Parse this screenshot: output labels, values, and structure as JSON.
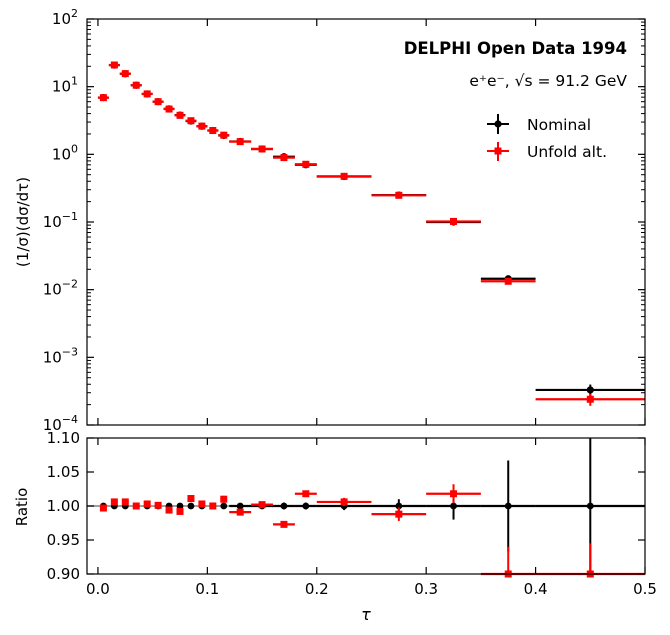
{
  "chart_data": [
    {
      "panel": "top",
      "type": "scatter",
      "title": "DELPHI Open Data 1994",
      "subtitle": "e⁺e⁻, √s = 91.2 GeV",
      "xlabel": "τ",
      "ylabel": "(1/σ)(dσ/dτ)",
      "yscale": "log",
      "xlim": [
        -0.01,
        0.5
      ],
      "ylim": [
        0.0001,
        100
      ],
      "x_ticks": [
        0.0,
        0.1,
        0.2,
        0.3,
        0.4,
        0.5
      ],
      "y_ticks": [
        {
          "value": 0.0001,
          "base": "10",
          "exp": "−4"
        },
        {
          "value": 0.001,
          "base": "10",
          "exp": "−3"
        },
        {
          "value": 0.01,
          "base": "10",
          "exp": "−2"
        },
        {
          "value": 0.1,
          "base": "10",
          "exp": "−1"
        },
        {
          "value": 1,
          "base": "10",
          "exp": "0"
        },
        {
          "value": 10,
          "base": "10",
          "exp": "1"
        },
        {
          "value": 100,
          "base": "10",
          "exp": "2"
        }
      ],
      "legend_position": "upper-right",
      "series": [
        {
          "name": "Nominal",
          "color": "#000000",
          "points": [
            {
              "xlo": 0.0,
              "xhi": 0.01,
              "y": 6.9
            },
            {
              "xlo": 0.01,
              "xhi": 0.02,
              "y": 20.8
            },
            {
              "xlo": 0.02,
              "xhi": 0.03,
              "y": 15.5
            },
            {
              "xlo": 0.03,
              "xhi": 0.04,
              "y": 10.5
            },
            {
              "xlo": 0.04,
              "xhi": 0.05,
              "y": 7.8
            },
            {
              "xlo": 0.05,
              "xhi": 0.06,
              "y": 6.0
            },
            {
              "xlo": 0.06,
              "xhi": 0.07,
              "y": 4.7
            },
            {
              "xlo": 0.07,
              "xhi": 0.08,
              "y": 3.8
            },
            {
              "xlo": 0.08,
              "xhi": 0.09,
              "y": 3.1
            },
            {
              "xlo": 0.09,
              "xhi": 0.1,
              "y": 2.6
            },
            {
              "xlo": 0.1,
              "xhi": 0.11,
              "y": 2.25
            },
            {
              "xlo": 0.11,
              "xhi": 0.12,
              "y": 1.9
            },
            {
              "xlo": 0.12,
              "xhi": 0.14,
              "y": 1.55
            },
            {
              "xlo": 0.14,
              "xhi": 0.16,
              "y": 1.2
            },
            {
              "xlo": 0.16,
              "xhi": 0.18,
              "y": 0.92
            },
            {
              "xlo": 0.18,
              "xhi": 0.2,
              "y": 0.7
            },
            {
              "xlo": 0.2,
              "xhi": 0.25,
              "y": 0.47
            },
            {
              "xlo": 0.25,
              "xhi": 0.3,
              "y": 0.25
            },
            {
              "xlo": 0.3,
              "xhi": 0.35,
              "y": 0.1
            },
            {
              "xlo": 0.35,
              "xhi": 0.4,
              "y": 0.0145
            },
            {
              "xlo": 0.4,
              "xhi": 0.5,
              "y": 0.00033
            }
          ]
        },
        {
          "name": "Unfold alt.",
          "color": "#ff0000",
          "points": [
            {
              "xlo": 0.0,
              "xhi": 0.01,
              "y": 6.88
            },
            {
              "xlo": 0.01,
              "xhi": 0.02,
              "y": 20.9
            },
            {
              "xlo": 0.02,
              "xhi": 0.03,
              "y": 15.6
            },
            {
              "xlo": 0.03,
              "xhi": 0.04,
              "y": 10.5
            },
            {
              "xlo": 0.04,
              "xhi": 0.05,
              "y": 7.82
            },
            {
              "xlo": 0.05,
              "xhi": 0.06,
              "y": 6.0
            },
            {
              "xlo": 0.06,
              "xhi": 0.07,
              "y": 4.67
            },
            {
              "xlo": 0.07,
              "xhi": 0.08,
              "y": 3.77
            },
            {
              "xlo": 0.08,
              "xhi": 0.09,
              "y": 3.14
            },
            {
              "xlo": 0.09,
              "xhi": 0.1,
              "y": 2.61
            },
            {
              "xlo": 0.1,
              "xhi": 0.11,
              "y": 2.25
            },
            {
              "xlo": 0.11,
              "xhi": 0.12,
              "y": 1.92
            },
            {
              "xlo": 0.12,
              "xhi": 0.14,
              "y": 1.54
            },
            {
              "xlo": 0.14,
              "xhi": 0.16,
              "y": 1.2
            },
            {
              "xlo": 0.16,
              "xhi": 0.18,
              "y": 0.895
            },
            {
              "xlo": 0.18,
              "xhi": 0.2,
              "y": 0.713
            },
            {
              "xlo": 0.2,
              "xhi": 0.25,
              "y": 0.473
            },
            {
              "xlo": 0.25,
              "xhi": 0.3,
              "y": 0.248
            },
            {
              "xlo": 0.3,
              "xhi": 0.35,
              "y": 0.102
            },
            {
              "xlo": 0.35,
              "xhi": 0.4,
              "y": 0.0133
            },
            {
              "xlo": 0.4,
              "xhi": 0.5,
              "y": 0.00024
            }
          ]
        }
      ]
    },
    {
      "panel": "bottom",
      "type": "scatter",
      "xlabel": "τ",
      "ylabel": "Ratio",
      "xlim": [
        -0.01,
        0.5
      ],
      "ylim": [
        0.9,
        1.1
      ],
      "x_ticks": [
        0.0,
        0.1,
        0.2,
        0.3,
        0.4,
        0.5
      ],
      "x_tick_labels": [
        "0.0",
        "0.1",
        "0.2",
        "0.3",
        "0.4",
        "0.5"
      ],
      "y_ticks": [
        0.9,
        0.95,
        1.0,
        1.05,
        1.1
      ],
      "y_tick_labels": [
        "0.90",
        "0.95",
        "1.00",
        "1.05",
        "1.10"
      ],
      "reference_line": 1.0,
      "series": [
        {
          "name": "Nominal",
          "color": "#000000",
          "points": [
            {
              "xlo": 0.0,
              "xhi": 0.01,
              "y": 1.0,
              "err": 0.003
            },
            {
              "xlo": 0.01,
              "xhi": 0.02,
              "y": 1.0,
              "err": 0.002
            },
            {
              "xlo": 0.02,
              "xhi": 0.03,
              "y": 1.0,
              "err": 0.002
            },
            {
              "xlo": 0.03,
              "xhi": 0.04,
              "y": 1.0,
              "err": 0.002
            },
            {
              "xlo": 0.04,
              "xhi": 0.05,
              "y": 1.0,
              "err": 0.002
            },
            {
              "xlo": 0.05,
              "xhi": 0.06,
              "y": 1.0,
              "err": 0.002
            },
            {
              "xlo": 0.06,
              "xhi": 0.07,
              "y": 1.0,
              "err": 0.002
            },
            {
              "xlo": 0.07,
              "xhi": 0.08,
              "y": 1.0,
              "err": 0.002
            },
            {
              "xlo": 0.08,
              "xhi": 0.09,
              "y": 1.0,
              "err": 0.002
            },
            {
              "xlo": 0.09,
              "xhi": 0.1,
              "y": 1.0,
              "err": 0.002
            },
            {
              "xlo": 0.1,
              "xhi": 0.11,
              "y": 1.0,
              "err": 0.002
            },
            {
              "xlo": 0.11,
              "xhi": 0.12,
              "y": 1.0,
              "err": 0.003
            },
            {
              "xlo": 0.12,
              "xhi": 0.14,
              "y": 1.0,
              "err": 0.003
            },
            {
              "xlo": 0.14,
              "xhi": 0.16,
              "y": 1.0,
              "err": 0.003
            },
            {
              "xlo": 0.16,
              "xhi": 0.18,
              "y": 1.0,
              "err": 0.005
            },
            {
              "xlo": 0.18,
              "xhi": 0.2,
              "y": 1.0,
              "err": 0.005
            },
            {
              "xlo": 0.2,
              "xhi": 0.25,
              "y": 1.0,
              "err": 0.006
            },
            {
              "xlo": 0.25,
              "xhi": 0.3,
              "y": 1.0,
              "err": 0.01
            },
            {
              "xlo": 0.3,
              "xhi": 0.35,
              "y": 1.0,
              "err": 0.02
            },
            {
              "xlo": 0.35,
              "xhi": 0.4,
              "y": 1.0,
              "err": 0.067
            },
            {
              "xlo": 0.4,
              "xhi": 0.5,
              "y": 1.0,
              "err": 0.15
            }
          ]
        },
        {
          "name": "Unfold alt.",
          "color": "#ff0000",
          "points": [
            {
              "xlo": 0.0,
              "xhi": 0.01,
              "y": 0.997,
              "err": 0.003
            },
            {
              "xlo": 0.01,
              "xhi": 0.02,
              "y": 1.006,
              "err": 0.003
            },
            {
              "xlo": 0.02,
              "xhi": 0.03,
              "y": 1.006,
              "err": 0.003
            },
            {
              "xlo": 0.03,
              "xhi": 0.04,
              "y": 1.0,
              "err": 0.003
            },
            {
              "xlo": 0.04,
              "xhi": 0.05,
              "y": 1.003,
              "err": 0.003
            },
            {
              "xlo": 0.05,
              "xhi": 0.06,
              "y": 1.001,
              "err": 0.003
            },
            {
              "xlo": 0.06,
              "xhi": 0.07,
              "y": 0.994,
              "err": 0.003
            },
            {
              "xlo": 0.07,
              "xhi": 0.08,
              "y": 0.992,
              "err": 0.004
            },
            {
              "xlo": 0.08,
              "xhi": 0.09,
              "y": 1.011,
              "err": 0.004
            },
            {
              "xlo": 0.09,
              "xhi": 0.1,
              "y": 1.003,
              "err": 0.004
            },
            {
              "xlo": 0.1,
              "xhi": 0.11,
              "y": 1.0,
              "err": 0.003
            },
            {
              "xlo": 0.11,
              "xhi": 0.12,
              "y": 1.01,
              "err": 0.005
            },
            {
              "xlo": 0.12,
              "xhi": 0.14,
              "y": 0.991,
              "err": 0.004
            },
            {
              "xlo": 0.14,
              "xhi": 0.16,
              "y": 1.002,
              "err": 0.004
            },
            {
              "xlo": 0.16,
              "xhi": 0.18,
              "y": 0.973,
              "err": 0.003
            },
            {
              "xlo": 0.18,
              "xhi": 0.2,
              "y": 1.018,
              "err": 0.004
            },
            {
              "xlo": 0.2,
              "xhi": 0.25,
              "y": 1.006,
              "err": 0.006
            },
            {
              "xlo": 0.25,
              "xhi": 0.3,
              "y": 0.988,
              "err": 0.01
            },
            {
              "xlo": 0.3,
              "xhi": 0.35,
              "y": 1.018,
              "err": 0.014
            },
            {
              "xlo": 0.35,
              "xhi": 0.4,
              "y": 0.9,
              "err": 0.04
            },
            {
              "xlo": 0.4,
              "xhi": 0.5,
              "y": 0.9,
              "err": 0.045
            }
          ]
        }
      ]
    }
  ],
  "colors": {
    "nominal": "#000000",
    "unfold_alt": "#ff0000",
    "reference_line": "#808080",
    "axes": "#000000"
  }
}
